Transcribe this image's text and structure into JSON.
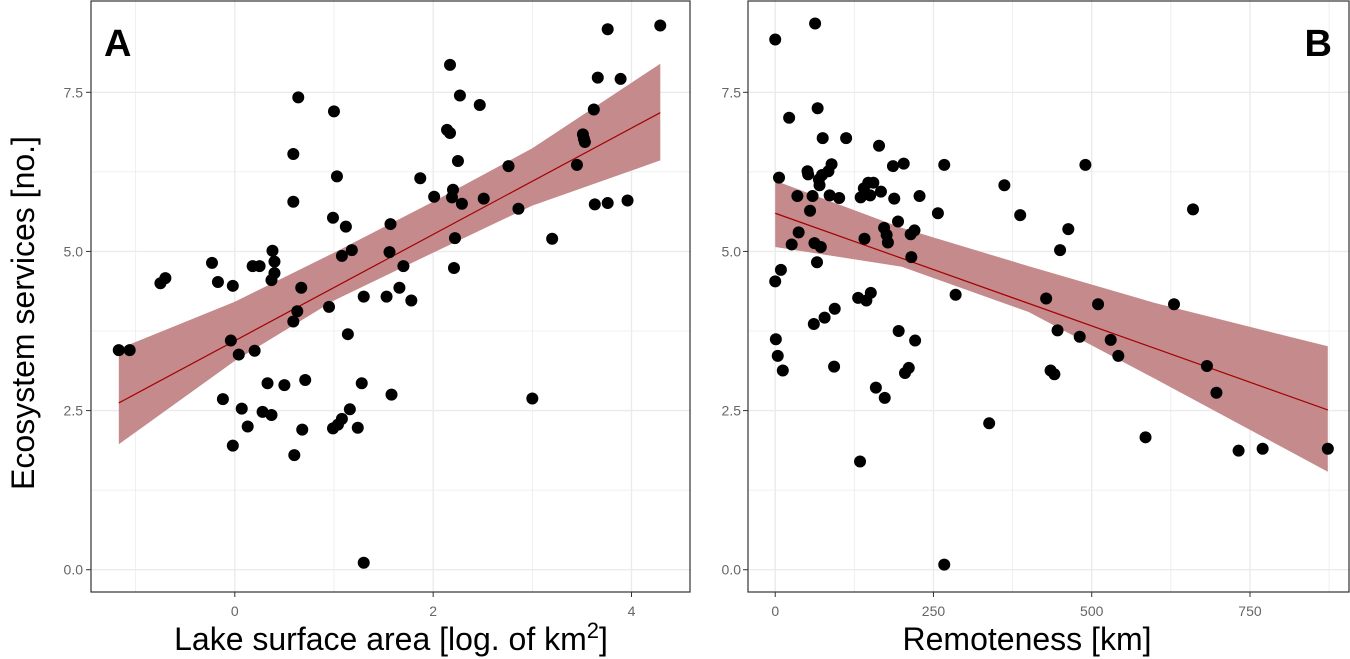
{
  "y_axis_title": "Ecosystem services [no.]",
  "colors": {
    "ribbon": "#c48a8c",
    "line": "#a50000",
    "point": "#000000",
    "grid": "#ebebeb",
    "border": "#333333"
  },
  "chart_data": [
    {
      "type": "scatter",
      "panel_label": "A",
      "xlabel_main": "Lake surface area [log. of km",
      "xlabel_sup": "2",
      "xlabel_end": "]",
      "ylabel": "Ecosystem services [no.]",
      "xlim": [
        -1.45,
        4.6
      ],
      "ylim": [
        -0.35,
        8.95
      ],
      "x_ticks": [
        0,
        2,
        4
      ],
      "x_tick_labels": [
        "0",
        "2",
        "4"
      ],
      "y_ticks": [
        0,
        2.5,
        5,
        7.5
      ],
      "y_tick_labels": [
        "0.0",
        "2.5",
        "5.0",
        "7.5"
      ],
      "grid": true,
      "fit": {
        "x0": -1.17,
        "y0": 2.62,
        "x1": 4.29,
        "y1": 7.18
      },
      "ci": {
        "x": [
          -1.17,
          0.0,
          1.0,
          2.0,
          3.0,
          4.29
        ],
        "lower": [
          1.97,
          3.28,
          4.23,
          4.98,
          5.72,
          6.43
        ],
        "upper": [
          3.47,
          4.21,
          4.98,
          5.78,
          6.62,
          7.95
        ]
      },
      "points": [
        [
          -1.17,
          3.45
        ],
        [
          -1.06,
          3.45
        ],
        [
          -0.75,
          4.5
        ],
        [
          -0.7,
          4.58
        ],
        [
          -0.23,
          4.82
        ],
        [
          -0.17,
          4.52
        ],
        [
          -0.12,
          2.68
        ],
        [
          -0.04,
          3.6
        ],
        [
          -0.02,
          4.46
        ],
        [
          -0.02,
          1.95
        ],
        [
          0.04,
          3.38
        ],
        [
          0.07,
          2.53
        ],
        [
          0.13,
          2.25
        ],
        [
          0.18,
          4.77
        ],
        [
          0.2,
          3.44
        ],
        [
          0.25,
          4.77
        ],
        [
          0.28,
          2.48
        ],
        [
          0.33,
          2.93
        ],
        [
          0.37,
          2.43
        ],
        [
          0.37,
          4.55
        ],
        [
          0.38,
          5.01
        ],
        [
          0.4,
          4.84
        ],
        [
          0.4,
          4.66
        ],
        [
          0.5,
          2.9
        ],
        [
          0.59,
          6.53
        ],
        [
          0.59,
          5.78
        ],
        [
          0.59,
          3.9
        ],
        [
          0.6,
          1.8
        ],
        [
          0.63,
          4.06
        ],
        [
          0.64,
          7.42
        ],
        [
          0.67,
          4.43
        ],
        [
          0.68,
          2.2
        ],
        [
          0.71,
          2.98
        ],
        [
          0.95,
          4.13
        ],
        [
          0.99,
          5.53
        ],
        [
          0.99,
          2.22
        ],
        [
          1.0,
          7.2
        ],
        [
          1.03,
          6.18
        ],
        [
          1.04,
          2.28
        ],
        [
          1.08,
          2.37
        ],
        [
          1.08,
          4.93
        ],
        [
          1.12,
          5.39
        ],
        [
          1.14,
          3.7
        ],
        [
          1.16,
          2.52
        ],
        [
          1.18,
          5.02
        ],
        [
          1.24,
          2.23
        ],
        [
          1.28,
          2.93
        ],
        [
          1.3,
          4.29
        ],
        [
          1.3,
          0.11
        ],
        [
          1.53,
          4.29
        ],
        [
          1.56,
          4.99
        ],
        [
          1.57,
          5.43
        ],
        [
          1.58,
          2.75
        ],
        [
          1.66,
          4.43
        ],
        [
          1.7,
          4.77
        ],
        [
          1.78,
          4.23
        ],
        [
          1.87,
          6.15
        ],
        [
          2.01,
          5.86
        ],
        [
          2.14,
          6.91
        ],
        [
          2.17,
          7.93
        ],
        [
          2.17,
          6.86
        ],
        [
          2.19,
          5.85
        ],
        [
          2.2,
          5.97
        ],
        [
          2.21,
          4.74
        ],
        [
          2.22,
          5.21
        ],
        [
          2.25,
          6.42
        ],
        [
          2.27,
          7.45
        ],
        [
          2.29,
          5.75
        ],
        [
          2.47,
          7.3
        ],
        [
          2.51,
          5.83
        ],
        [
          2.76,
          6.34
        ],
        [
          2.86,
          5.67
        ],
        [
          3.0,
          2.69
        ],
        [
          3.2,
          5.2
        ],
        [
          3.45,
          6.36
        ],
        [
          3.51,
          6.84
        ],
        [
          3.52,
          6.77
        ],
        [
          3.53,
          6.72
        ],
        [
          3.62,
          7.23
        ],
        [
          3.63,
          5.74
        ],
        [
          3.66,
          7.73
        ],
        [
          3.76,
          8.49
        ],
        [
          3.76,
          5.76
        ],
        [
          3.89,
          7.71
        ],
        [
          3.96,
          5.8
        ],
        [
          4.29,
          8.55
        ]
      ]
    },
    {
      "type": "scatter",
      "panel_label": "B",
      "xlabel_main": "Remoteness [km]",
      "xlabel_sup": "",
      "xlabel_end": "",
      "ylabel": "Ecosystem services [no.]",
      "xlim": [
        -43,
        908
      ],
      "ylim": [
        -0.35,
        8.95
      ],
      "x_ticks": [
        0,
        250,
        500,
        750
      ],
      "x_tick_labels": [
        "0",
        "250",
        "500",
        "750"
      ],
      "y_ticks": [
        0,
        2.5,
        5,
        7.5
      ],
      "y_tick_labels": [
        "0.0",
        "2.5",
        "5.0",
        "7.5"
      ],
      "grid": true,
      "fit": {
        "x0": 0,
        "y0": 5.6,
        "x1": 873,
        "y1": 2.51
      },
      "ci": {
        "x": [
          0,
          200,
          400,
          600,
          873
        ],
        "lower": [
          5.07,
          4.76,
          4.05,
          3.0,
          1.54
        ],
        "upper": [
          6.11,
          5.37,
          4.77,
          4.19,
          3.51
        ]
      },
      "points": [
        [
          0,
          8.33
        ],
        [
          0,
          4.53
        ],
        [
          1,
          3.62
        ],
        [
          4,
          3.36
        ],
        [
          6,
          6.16
        ],
        [
          9,
          4.71
        ],
        [
          12,
          3.13
        ],
        [
          22,
          7.1
        ],
        [
          26,
          5.11
        ],
        [
          35,
          5.87
        ],
        [
          37,
          5.3
        ],
        [
          51,
          6.26
        ],
        [
          52,
          6.21
        ],
        [
          55,
          5.64
        ],
        [
          59,
          5.87
        ],
        [
          61,
          3.86
        ],
        [
          62,
          5.13
        ],
        [
          63,
          8.58
        ],
        [
          66,
          4.83
        ],
        [
          67,
          7.25
        ],
        [
          69,
          6.13
        ],
        [
          70,
          6.04
        ],
        [
          72,
          5.07
        ],
        [
          74,
          6.2
        ],
        [
          75,
          6.78
        ],
        [
          78,
          3.96
        ],
        [
          84,
          6.26
        ],
        [
          86,
          5.88
        ],
        [
          89,
          6.37
        ],
        [
          93,
          3.19
        ],
        [
          94,
          4.1
        ],
        [
          101,
          5.84
        ],
        [
          112,
          6.78
        ],
        [
          131,
          4.27
        ],
        [
          134,
          1.7
        ],
        [
          135,
          5.85
        ],
        [
          140,
          5.99
        ],
        [
          141,
          5.2
        ],
        [
          144,
          4.23
        ],
        [
          147,
          6.08
        ],
        [
          150,
          5.88
        ],
        [
          151,
          4.35
        ],
        [
          155,
          6.08
        ],
        [
          159,
          2.86
        ],
        [
          164,
          6.66
        ],
        [
          167,
          5.94
        ],
        [
          172,
          5.37
        ],
        [
          173,
          2.7
        ],
        [
          176,
          5.26
        ],
        [
          178,
          5.14
        ],
        [
          186,
          6.34
        ],
        [
          188,
          5.83
        ],
        [
          194,
          5.47
        ],
        [
          195,
          3.75
        ],
        [
          203,
          6.38
        ],
        [
          205,
          3.09
        ],
        [
          211,
          3.17
        ],
        [
          214,
          5.27
        ],
        [
          215,
          4.91
        ],
        [
          220,
          5.33
        ],
        [
          221,
          3.6
        ],
        [
          228,
          5.87
        ],
        [
          257,
          5.6
        ],
        [
          267,
          6.36
        ],
        [
          267,
          0.08
        ],
        [
          285,
          4.32
        ],
        [
          338,
          2.3
        ],
        [
          362,
          6.04
        ],
        [
          387,
          5.57
        ],
        [
          428,
          4.26
        ],
        [
          435,
          3.13
        ],
        [
          441,
          3.07
        ],
        [
          446,
          3.76
        ],
        [
          450,
          5.02
        ],
        [
          463,
          5.35
        ],
        [
          481,
          3.66
        ],
        [
          490,
          6.36
        ],
        [
          510,
          4.17
        ],
        [
          530,
          3.61
        ],
        [
          542,
          3.36
        ],
        [
          585,
          2.08
        ],
        [
          660,
          5.66
        ],
        [
          630,
          4.17
        ],
        [
          682,
          3.2
        ],
        [
          697,
          2.78
        ],
        [
          732,
          1.87
        ],
        [
          770,
          1.9
        ],
        [
          873,
          1.9
        ]
      ]
    }
  ]
}
